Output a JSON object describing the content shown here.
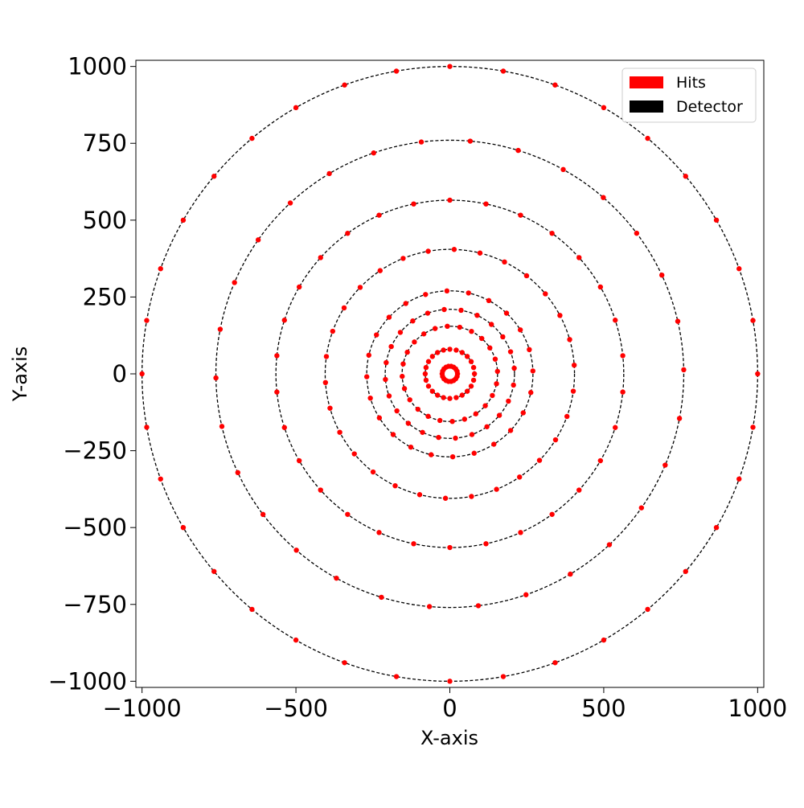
{
  "chart_data": {
    "type": "scatter",
    "title": "",
    "xlabel": "X-axis",
    "ylabel": "Y-axis",
    "xlim": [
      -1020,
      1020
    ],
    "ylim": [
      -1020,
      1020
    ],
    "xticks": [
      -1000,
      -500,
      0,
      500,
      1000
    ],
    "yticks": [
      -1000,
      -750,
      -500,
      -250,
      0,
      250,
      500,
      750,
      1000
    ],
    "xtick_labels": [
      "−1000",
      "−500",
      "0",
      "500",
      "1000"
    ],
    "ytick_labels": [
      "−1000",
      "−750",
      "−500",
      "−250",
      "0",
      "250",
      "500",
      "750",
      "1000"
    ],
    "grid": false,
    "legend": {
      "position": "upper-right",
      "entries": [
        {
          "label": "Hits",
          "color": "#ff0000"
        },
        {
          "label": "Detector",
          "color": "#000000"
        }
      ]
    },
    "detector_rings": {
      "name": "Detector",
      "color": "#000000",
      "style": "dashed",
      "center": [
        0,
        0
      ],
      "radii": [
        25,
        80,
        155,
        210,
        270,
        405,
        565,
        760,
        1000
      ]
    },
    "hits": {
      "name": "Hits",
      "color": "#ff0000",
      "rings": [
        {
          "radius": 25,
          "angles_deg": [
            0,
            20,
            40,
            60,
            80,
            100,
            120,
            140,
            160,
            180,
            200,
            220,
            240,
            260,
            280,
            300,
            320,
            340
          ]
        },
        {
          "radius": 80,
          "angles_deg": [
            0,
            15,
            30,
            45,
            60,
            75,
            90,
            105,
            120,
            135,
            150,
            165,
            180,
            195,
            210,
            225,
            240,
            255,
            270,
            285,
            300,
            315,
            330,
            345
          ]
        },
        {
          "radius": 155,
          "angles_deg": [
            3,
            18,
            33,
            48,
            63,
            78,
            93,
            108,
            123,
            138,
            153,
            168,
            183,
            198,
            213,
            228,
            243,
            258,
            273,
            288,
            303,
            318,
            333,
            348
          ]
        },
        {
          "radius": 210,
          "angles_deg": [
            5,
            20,
            35,
            50,
            65,
            80,
            95,
            110,
            125,
            140,
            155,
            170,
            185,
            200,
            215,
            230,
            245,
            260,
            275,
            290,
            305,
            320,
            335,
            350
          ]
        },
        {
          "radius": 270,
          "angles_deg": [
            2,
            17,
            32,
            47,
            62,
            77,
            92,
            107,
            122,
            137,
            152,
            167,
            182,
            197,
            212,
            227,
            242,
            257,
            272,
            287,
            302,
            317,
            332,
            347
          ]
        },
        {
          "radius": 405,
          "angles_deg": [
            4,
            16,
            28,
            40,
            52,
            64,
            76,
            88,
            100,
            112,
            124,
            136,
            148,
            160,
            172,
            184,
            196,
            208,
            220,
            232,
            244,
            256,
            268,
            280,
            292,
            304,
            316,
            328,
            340,
            352
          ]
        },
        {
          "radius": 565,
          "angles_deg": [
            6,
            18,
            30,
            42,
            54,
            66,
            78,
            90,
            102,
            114,
            126,
            138,
            150,
            162,
            174,
            186,
            198,
            210,
            222,
            234,
            246,
            258,
            270,
            282,
            294,
            306,
            318,
            330,
            342,
            354
          ]
        },
        {
          "radius": 760,
          "angles_deg": [
            1,
            13,
            25,
            37,
            49,
            61,
            73,
            85,
            97,
            109,
            121,
            133,
            145,
            157,
            169,
            181,
            193,
            205,
            217,
            229,
            241,
            253,
            265,
            277,
            289,
            301,
            313,
            325,
            337,
            349
          ]
        },
        {
          "radius": 1000,
          "angles_deg": [
            0,
            10,
            20,
            30,
            40,
            50,
            60,
            70,
            80,
            90,
            100,
            110,
            120,
            130,
            140,
            150,
            160,
            170,
            180,
            190,
            200,
            210,
            220,
            230,
            240,
            250,
            260,
            270,
            280,
            290,
            300,
            310,
            320,
            330,
            340,
            350
          ]
        }
      ]
    }
  }
}
